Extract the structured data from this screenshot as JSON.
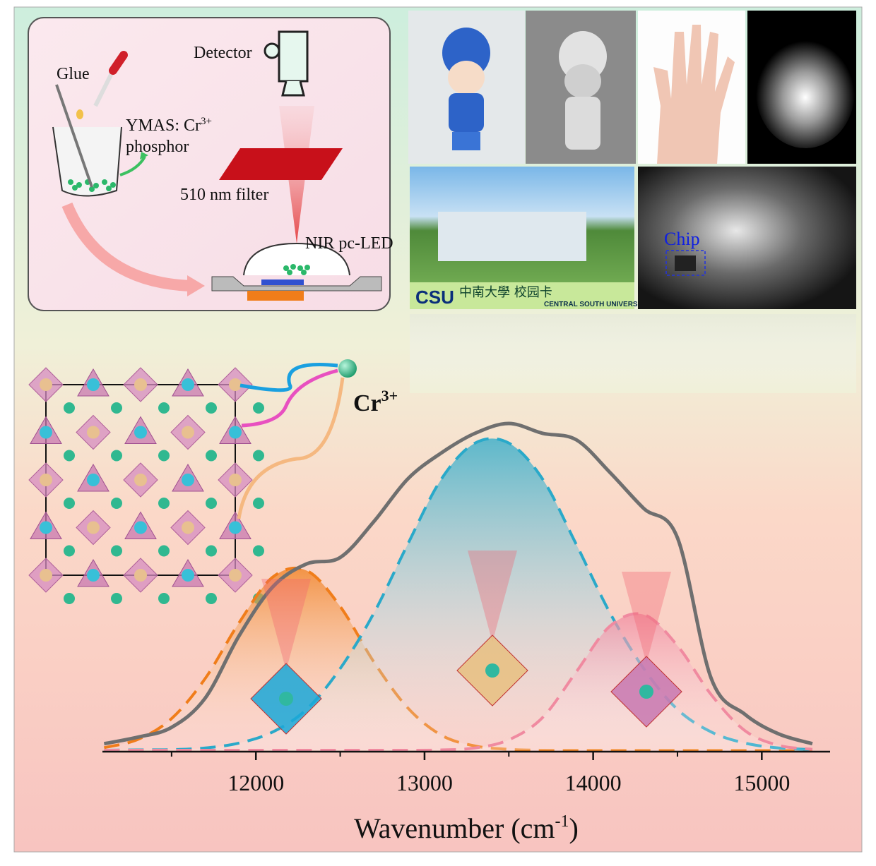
{
  "schematic": {
    "glue": "Glue",
    "detector": "Detector",
    "phosphor_line1": "YMAS: Cr",
    "phosphor_sup": "3+",
    "phosphor_line2": "phosphor",
    "filter": "510 nm filter",
    "led": "NIR pc-LED"
  },
  "photos": {
    "card_logo": "CSU",
    "card_name": "中南大學 校园卡",
    "card_english": "CENTRAL SOUTH UNIVERSITY",
    "chip": "Chip"
  },
  "ion_label": {
    "base": "Cr",
    "sup": "3+"
  },
  "chart_data": {
    "type": "line",
    "x_label": {
      "text": "Wavenumber (cm",
      "sup": "-1",
      "close": ")"
    },
    "x": [
      11100,
      11300,
      11500,
      11700,
      11900,
      12100,
      12300,
      12500,
      12700,
      12900,
      13100,
      13300,
      13500,
      13700,
      13900,
      14100,
      14300,
      14500,
      14700,
      14900,
      15100,
      15300
    ],
    "xlim": [
      11090,
      15405
    ],
    "xticks": [
      12000,
      13000,
      14000,
      15000
    ],
    "xminorticks": [
      11500,
      12500,
      13500,
      14500
    ],
    "ylim": [
      0,
      1
    ],
    "series": [
      {
        "color": "#6f6f6f",
        "style": "solid",
        "values": [
          0.02,
          0.04,
          0.07,
          0.16,
          0.35,
          0.5,
          0.57,
          0.59,
          0.7,
          0.83,
          0.91,
          0.97,
          1.0,
          0.97,
          0.95,
          0.85,
          0.74,
          0.65,
          0.22,
          0.11,
          0.05,
          0.02
        ]
      },
      {
        "color": "#f07d1a",
        "style": "dashed",
        "values": [
          0.008,
          0.033,
          0.097,
          0.22,
          0.39,
          0.53,
          0.55,
          0.44,
          0.27,
          0.13,
          0.046,
          0.013,
          0.003,
          0,
          0,
          0,
          0,
          0,
          0,
          0,
          0,
          0
        ]
      },
      {
        "color": "#2aa9c9",
        "style": "dashed",
        "values": [
          0,
          0.001,
          0.002,
          0.007,
          0.022,
          0.056,
          0.125,
          0.25,
          0.42,
          0.63,
          0.83,
          0.94,
          0.94,
          0.83,
          0.63,
          0.42,
          0.25,
          0.125,
          0.056,
          0.022,
          0.007,
          0.002
        ]
      },
      {
        "color": "#f08aa0",
        "style": "dashed",
        "values": [
          0,
          0,
          0,
          0,
          0,
          0,
          0,
          0,
          0,
          0,
          0.001,
          0.007,
          0.032,
          0.1,
          0.24,
          0.38,
          0.415,
          0.32,
          0.17,
          0.06,
          0.015,
          0.003
        ]
      }
    ]
  }
}
